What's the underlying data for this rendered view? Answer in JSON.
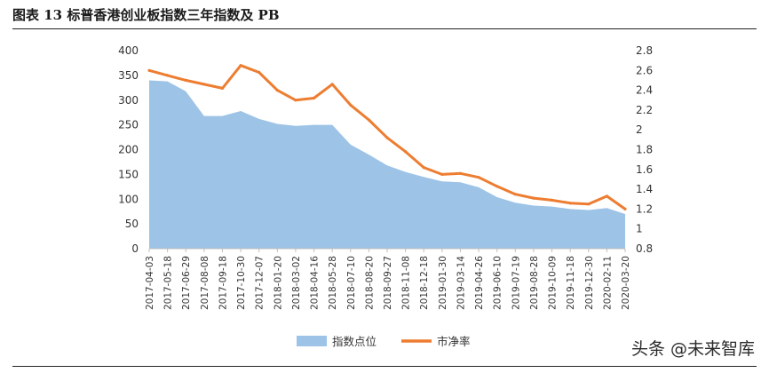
{
  "title": "图表 13 标普香港创业板指数三年指数及 PB",
  "watermark": "头条 @未来智库",
  "colors": {
    "area": "#9dc3e6",
    "line": "#ed7d31",
    "axis": "#bfbfbf"
  },
  "chart_data": {
    "type": "area",
    "categories": [
      "2017-04-03",
      "2017-05-18",
      "2017-06-29",
      "2017-08-08",
      "2017-09-18",
      "2017-10-30",
      "2017-12-07",
      "2018-01-20",
      "2018-03-02",
      "2018-04-16",
      "2018-05-28",
      "2018-07-10",
      "2018-08-20",
      "2018-09-27",
      "2018-11-08",
      "2018-12-18",
      "2019-01-30",
      "2019-03-14",
      "2019-04-26",
      "2019-06-10",
      "2019-07-19",
      "2019-08-28",
      "2019-10-09",
      "2019-11-18",
      "2019-12-30",
      "2020-02-11",
      "2020-03-20"
    ],
    "series": [
      {
        "name": "指数点位",
        "type": "area",
        "axis": "left",
        "values": [
          340,
          338,
          318,
          268,
          268,
          278,
          262,
          252,
          248,
          250,
          250,
          210,
          190,
          168,
          155,
          145,
          136,
          134,
          124,
          104,
          93,
          87,
          85,
          80,
          78,
          82,
          70
        ]
      },
      {
        "name": "市净率",
        "type": "line",
        "axis": "right",
        "values": [
          2.6,
          2.55,
          2.5,
          2.46,
          2.42,
          2.65,
          2.58,
          2.4,
          2.3,
          2.32,
          2.46,
          2.25,
          2.1,
          1.92,
          1.78,
          1.62,
          1.55,
          1.56,
          1.52,
          1.43,
          1.35,
          1.31,
          1.29,
          1.26,
          1.25,
          1.33,
          1.2
        ]
      }
    ],
    "left_axis": {
      "ylim": [
        0,
        400
      ],
      "ticks": [
        "0",
        "50",
        "100",
        "150",
        "200",
        "250",
        "300",
        "350",
        "400"
      ]
    },
    "right_axis": {
      "ylim": [
        0.8,
        2.8
      ],
      "ticks": [
        "0.8",
        "1",
        "1.2",
        "1.4",
        "1.6",
        "1.8",
        "2",
        "2.2",
        "2.4",
        "2.6",
        "2.8"
      ]
    },
    "legend_position": "bottom",
    "grid": false
  }
}
